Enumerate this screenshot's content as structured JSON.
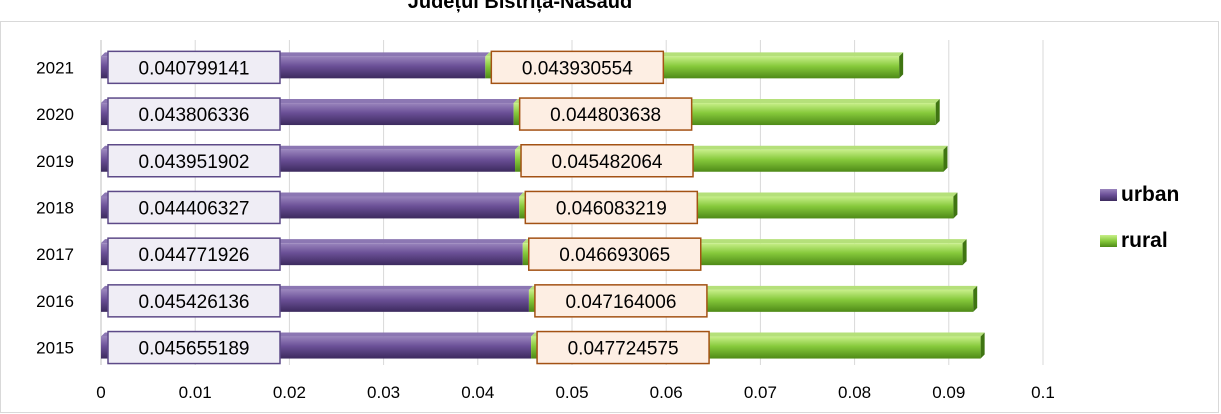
{
  "chart_data": {
    "type": "bar",
    "orientation": "horizontal",
    "stacked": true,
    "title": "Județul Bistrița-Năsăud",
    "categories": [
      "2021",
      "2020",
      "2019",
      "2018",
      "2017",
      "2016",
      "2015"
    ],
    "series": [
      {
        "name": "urban",
        "color": "#6a4f96",
        "values": [
          0.040799141,
          0.043806336,
          0.043951902,
          0.044406327,
          0.044771926,
          0.045426136,
          0.045655189
        ],
        "labels": [
          "0.040799141",
          "0.043806336",
          "0.043951902",
          "0.044406327",
          "0.044771926",
          "0.045426136",
          "0.045655189"
        ]
      },
      {
        "name": "rural",
        "color": "#8ccf3c",
        "values": [
          0.043930554,
          0.044803638,
          0.045482064,
          0.046083219,
          0.046693065,
          0.047164006,
          0.047724575
        ],
        "labels": [
          "0.043930554",
          "0.044803638",
          "0.045482064",
          "0.046083219",
          "0.046693065",
          "0.047164006",
          "0.047724575"
        ]
      }
    ],
    "xlim": [
      0,
      0.1
    ],
    "x_ticks": [
      "0",
      "0.01",
      "0.02",
      "0.03",
      "0.04",
      "0.05",
      "0.06",
      "0.07",
      "0.08",
      "0.09",
      "0.1"
    ],
    "gridlines": "vertical",
    "legend_position": "right"
  }
}
